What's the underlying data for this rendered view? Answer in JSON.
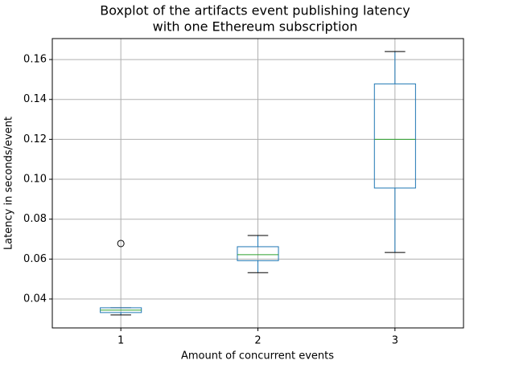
{
  "chart_data": {
    "type": "box",
    "title": [
      "Boxplot of the artifacts event publishing latency",
      "with one Ethereum subscription"
    ],
    "xlabel": "Amount of concurrent events",
    "ylabel": "Latency in seconds/event",
    "categories": [
      "1",
      "2",
      "3"
    ],
    "boxes": [
      {
        "min": 0.032,
        "q1": 0.0332,
        "median": 0.0344,
        "q3": 0.0356,
        "max": 0.0356,
        "outliers": [
          0.0678
        ]
      },
      {
        "min": 0.0532,
        "q1": 0.0592,
        "median": 0.0622,
        "q3": 0.0662,
        "max": 0.0718,
        "outliers": []
      },
      {
        "min": 0.0633,
        "q1": 0.0956,
        "median": 0.12,
        "q3": 0.1478,
        "max": 0.164,
        "outliers": []
      }
    ],
    "box_color": "#1f77b4",
    "median_color": "#2ca02c",
    "whisker_color": "#000000",
    "ylim": [
      0.0255,
      0.1705
    ],
    "yticks": [
      0.04,
      0.06,
      0.08,
      {
        "value": 0.1,
        "label": "0.10"
      },
      0.12,
      0.14,
      0.16
    ],
    "grid": true
  }
}
